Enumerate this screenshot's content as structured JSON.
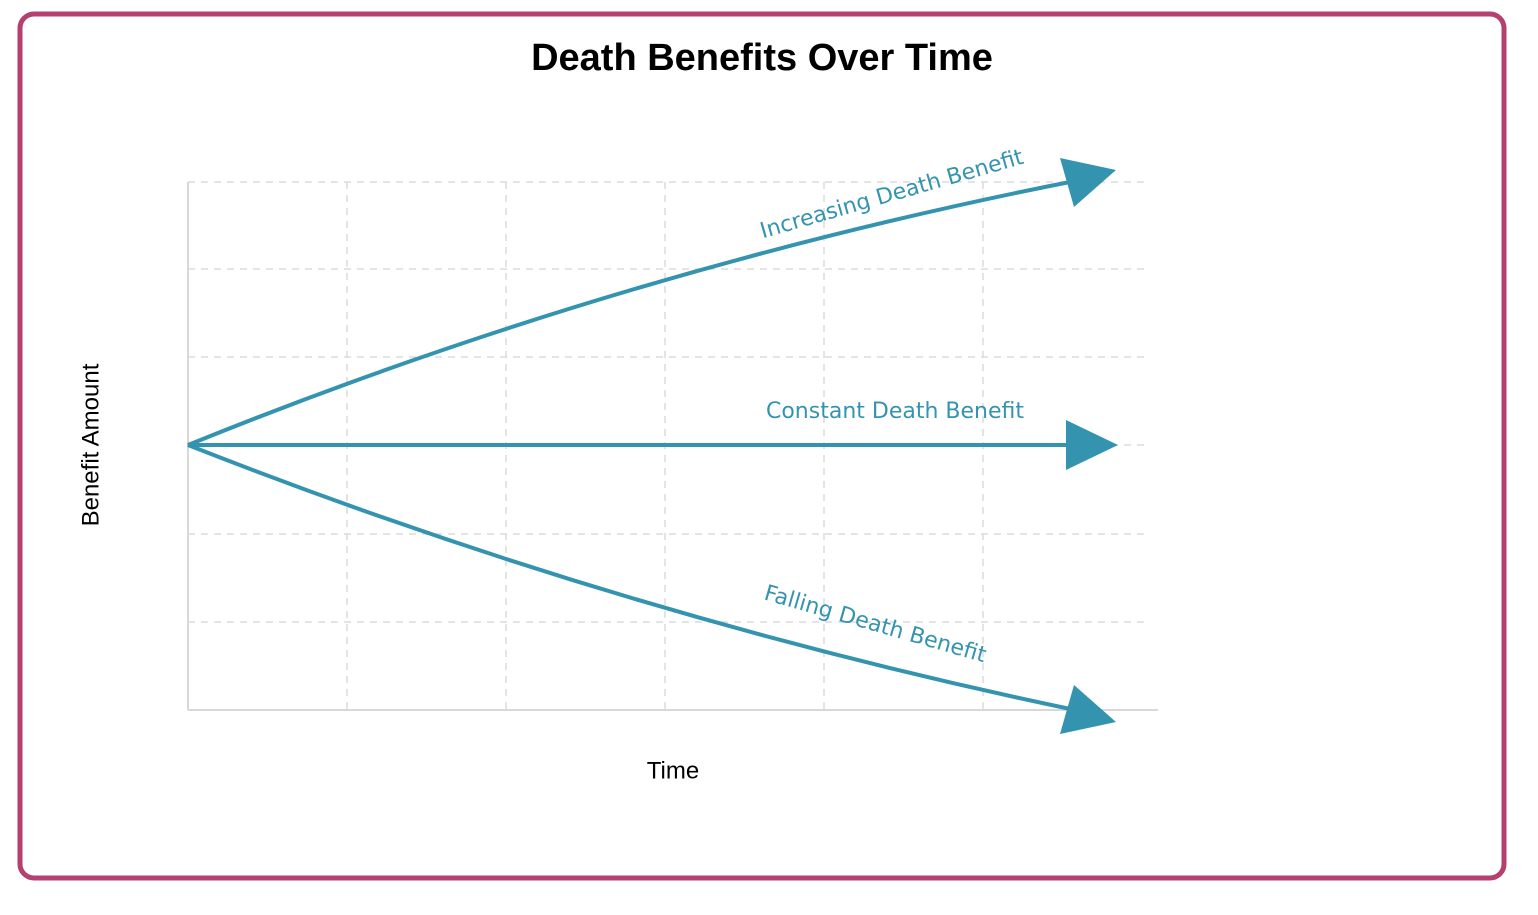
{
  "title": "Death Benefits Over Time",
  "axes": {
    "x_label": "Time",
    "y_label": "Benefit Amount"
  },
  "lines": [
    {
      "label": "Increasing Death Benefit"
    },
    {
      "label": "Constant Death Benefit"
    },
    {
      "label": "Falling Death Benefit"
    }
  ]
}
